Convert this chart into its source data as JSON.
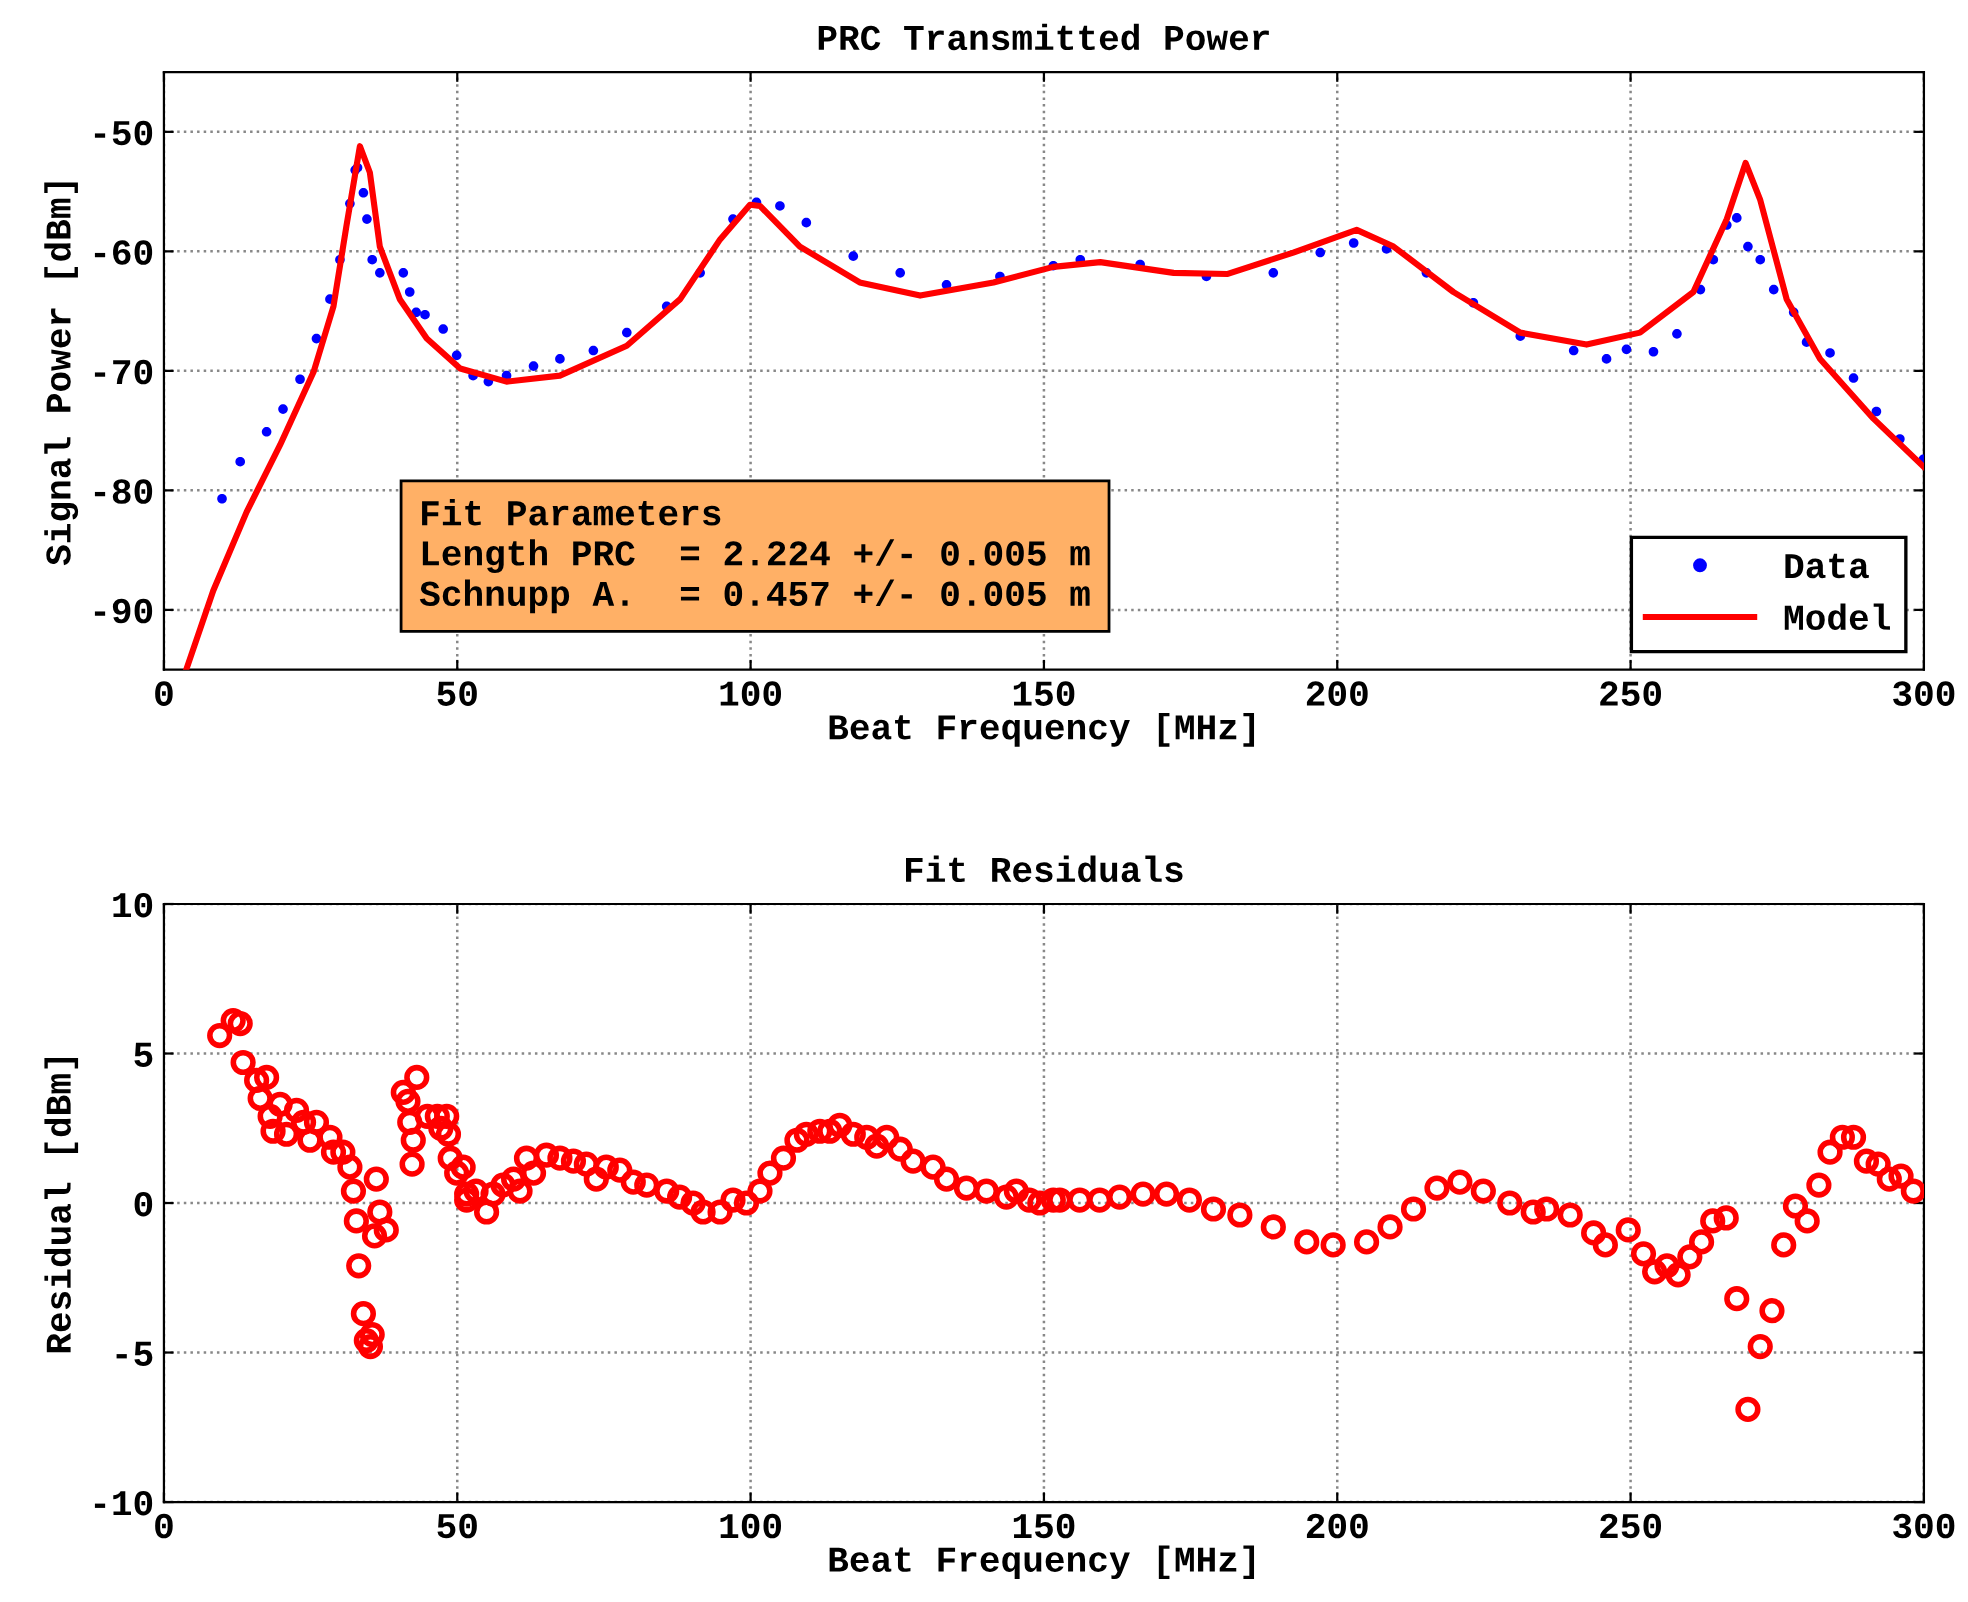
{
  "chart_data": [
    {
      "type": "scatter",
      "title": "PRC Transmitted Power",
      "xlabel": "Beat Frequency [MHz]",
      "ylabel": "Signal Power [dBm]",
      "xlim": [
        0,
        300
      ],
      "xticks": [
        0,
        50,
        100,
        150,
        200,
        250,
        300
      ],
      "ylim": [
        -95,
        -45
      ],
      "yticks": [
        -90,
        -80,
        -70,
        -60,
        -50
      ],
      "grid": true,
      "legend": "bottom right",
      "annotations": [
        "Fit Parameters\nLength PRC  = 2.224 +/- 0.005 m\nSchnupp A.  = 0.457 +/- 0.005 m"
      ],
      "series": [
        {
          "name": "Data",
          "type": "scatter",
          "marker": "circle",
          "color": "#0000ff",
          "x": [
            9.9,
            13,
            17.5,
            20.3,
            23.2,
            26,
            28.3,
            30,
            31.7,
            32.6,
            33,
            34,
            34.6,
            35.5,
            36.8,
            40.8,
            41.9,
            43,
            44.5,
            47.6,
            49.9,
            52.7,
            55.3,
            58.4,
            63,
            67.5,
            73.2,
            78.9,
            85.7,
            91.4,
            97,
            101,
            105,
            109.5,
            117.5,
            125.5,
            133.4,
            142.5,
            151.6,
            156.2,
            166.4,
            177.7,
            189.1,
            197.1,
            202.8,
            208.4,
            215.2,
            223.2,
            231.2,
            240.3,
            245.9,
            249.3,
            253.9,
            257.9,
            261.9,
            264.1,
            266.4,
            268.1,
            270,
            272.1,
            274.4,
            277.8,
            280,
            284,
            288,
            291.9,
            295.9,
            299.9
          ],
          "values": [
            -80.7,
            -77.6,
            -75.1,
            -73.2,
            -70.7,
            -67.3,
            -64,
            -60.7,
            -56,
            -53.2,
            -53,
            -55.1,
            -57.3,
            -60.7,
            -61.8,
            -61.8,
            -63.4,
            -65.1,
            -65.3,
            -66.5,
            -68.7,
            -70.4,
            -70.9,
            -70.4,
            -69.6,
            -69,
            -68.3,
            -66.8,
            -64.6,
            -61.8,
            -57.3,
            -55.9,
            -56.2,
            -57.6,
            -60.4,
            -61.8,
            -62.8,
            -62.1,
            -61.2,
            -60.7,
            -61.1,
            -62.1,
            -61.8,
            -60.1,
            -59.3,
            -59.8,
            -61.8,
            -64.3,
            -67.1,
            -68.3,
            -69,
            -68.2,
            -68.4,
            -66.9,
            -63.2,
            -60.7,
            -57.8,
            -57.2,
            -59.6,
            -60.7,
            -63.2,
            -65.1,
            -67.6,
            -68.5,
            -70.6,
            -73.4,
            -75.7,
            -77.4
          ]
        },
        {
          "name": "Model",
          "type": "line",
          "marker": "none",
          "line_style": "solid",
          "color": "#ff0000",
          "x": [
            3.8,
            8.4,
            14.1,
            19.8,
            25.5,
            28.9,
            31.1,
            33.4,
            35.1,
            36.8,
            40.2,
            44.8,
            50.5,
            58.4,
            67.5,
            78.9,
            88,
            94.8,
            99.9,
            101.6,
            108.4,
            118.6,
            128.9,
            141.4,
            151.6,
            159.6,
            172.1,
            181.2,
            192.5,
            203.3,
            209.6,
            219.8,
            231.2,
            242.5,
            251.6,
            260.7,
            266.4,
            269.6,
            272.1,
            276.6,
            282.3,
            291.4,
            299.9
          ],
          "values": [
            -95,
            -88.4,
            -81.8,
            -76.2,
            -70.1,
            -64.6,
            -57.9,
            -51.2,
            -53.4,
            -59.6,
            -64,
            -67.3,
            -69.8,
            -70.9,
            -70.4,
            -67.9,
            -64,
            -59,
            -56.1,
            -56.2,
            -59.6,
            -62.6,
            -63.7,
            -62.6,
            -61.3,
            -60.9,
            -61.8,
            -61.9,
            -60.1,
            -58.2,
            -59.6,
            -63.4,
            -66.8,
            -67.8,
            -66.8,
            -63.4,
            -57.3,
            -52.6,
            -55.7,
            -64,
            -69,
            -74,
            -78
          ]
        }
      ]
    },
    {
      "type": "scatter",
      "title": "Fit Residuals",
      "xlabel": "Beat Frequency [MHz]",
      "ylabel": "Residual [dBm]",
      "xlim": [
        0,
        300
      ],
      "xticks": [
        0,
        50,
        100,
        150,
        200,
        250,
        300
      ],
      "ylim": [
        -10,
        10
      ],
      "yticks": [
        -10,
        -5,
        0,
        5,
        10
      ],
      "grid": true,
      "marker": "circle",
      "series": [
        {
          "color": "#ff0000",
          "x": [
            9.5,
            11.8,
            13,
            13.5,
            15.8,
            17.5,
            16.4,
            18.1,
            19.8,
            18.6,
            20.9,
            22.6,
            23.8,
            26,
            24.9,
            28.3,
            28.9,
            30.5,
            31.7,
            32.3,
            32.8,
            33.2,
            34,
            34.5,
            35.5,
            35.2,
            36.2,
            36.8,
            37.9,
            35.9,
            40.8,
            41.6,
            41.9,
            43.1,
            42.5,
            42.3,
            44.9,
            46.6,
            48.2,
            47.2,
            48.5,
            48.8,
            49.9,
            51,
            51.6,
            51.6,
            53.2,
            55,
            56.1,
            57.8,
            59.6,
            60.7,
            61.8,
            63,
            65.2,
            67.5,
            69.8,
            72,
            73.7,
            75.4,
            77.7,
            80,
            82.3,
            85.7,
            87.9,
            90.2,
            91.9,
            94.8,
            97,
            99.3,
            101.6,
            103.3,
            105.6,
            107.9,
            109.5,
            111.8,
            113.5,
            115.2,
            117.5,
            119.8,
            121.5,
            123.2,
            125.5,
            127.7,
            131.1,
            133.4,
            136.8,
            140.2,
            143.6,
            145.3,
            147.5,
            149.3,
            151.6,
            152.7,
            156.1,
            159.5,
            162.9,
            166.9,
            170.9,
            174.8,
            178.9,
            183.4,
            189.1,
            194.8,
            199.3,
            205,
            209,
            213,
            217,
            220.9,
            224.9,
            229.4,
            233.4,
            235.7,
            239.7,
            243.7,
            245.7,
            249.6,
            252.2,
            254.1,
            256.2,
            258.1,
            260.1,
            262.1,
            264,
            266.3,
            268.1,
            270,
            272.1,
            274.1,
            276.1,
            278.1,
            280.1,
            282.1,
            284,
            286.1,
            288,
            290.2,
            292.2,
            294.1,
            296.1,
            298.2
          ],
          "values": [
            5.6,
            6.1,
            6.0,
            4.7,
            4.1,
            4.2,
            3.5,
            2.9,
            3.3,
            2.4,
            2.3,
            3.1,
            2.7,
            2.7,
            2.1,
            2.2,
            1.7,
            1.7,
            1.2,
            0.4,
            -0.6,
            -2.1,
            -3.7,
            -4.6,
            -4.4,
            -4.8,
            0.8,
            -0.3,
            -0.9,
            -1.1,
            3.7,
            3.4,
            2.7,
            4.2,
            2.1,
            1.3,
            2.9,
            2.9,
            2.9,
            2.5,
            2.3,
            1.5,
            1.0,
            1.2,
            0.3,
            0.1,
            0.4,
            -0.3,
            0.3,
            0.6,
            0.8,
            0.4,
            1.5,
            1.0,
            1.6,
            1.5,
            1.4,
            1.3,
            0.8,
            1.2,
            1.1,
            0.7,
            0.6,
            0.4,
            0.2,
            0,
            -0.3,
            -0.3,
            0.1,
            0,
            0.4,
            1.0,
            1.5,
            2.1,
            2.3,
            2.4,
            2.4,
            2.6,
            2.3,
            2.2,
            1.9,
            2.2,
            1.8,
            1.4,
            1.2,
            0.8,
            0.5,
            0.4,
            0.2,
            0.4,
            0.1,
            0,
            0.1,
            0.1,
            0.1,
            0.1,
            0.2,
            0.3,
            0.3,
            0.1,
            -0.2,
            -0.4,
            -0.8,
            -1.3,
            -1.4,
            -1.3,
            -0.8,
            -0.2,
            0.5,
            0.7,
            0.4,
            0,
            -0.3,
            -0.2,
            -0.4,
            -1.0,
            -1.4,
            -0.9,
            -1.7,
            -2.3,
            -2.1,
            -2.4,
            -1.8,
            -1.3,
            -0.6,
            -0.5,
            -3.2,
            -6.9,
            -4.8,
            -3.6,
            -1.4,
            -0.1,
            -0.6,
            0.6,
            1.7,
            2.2,
            2.2,
            1.4,
            1.3,
            0.8,
            0.9,
            0.4
          ]
        }
      ]
    }
  ]
}
